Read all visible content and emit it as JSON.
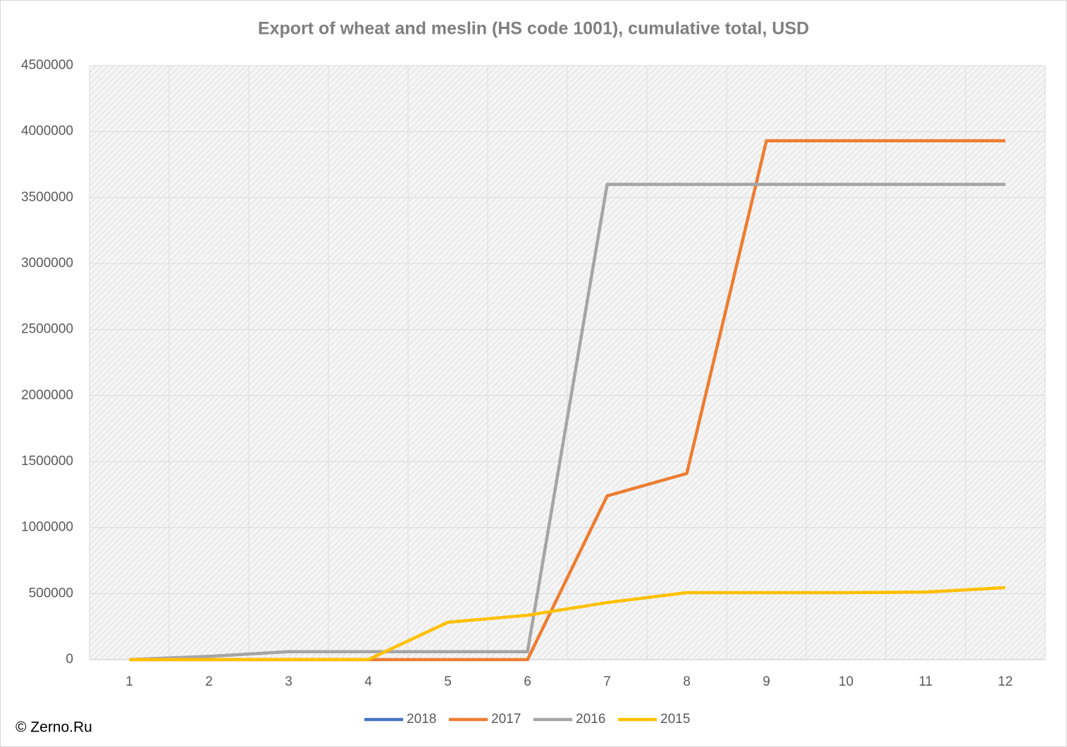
{
  "chart_data": {
    "type": "line",
    "title": "Export of wheat and meslin (HS code 1001), cumulative total, USD",
    "categories": [
      "1",
      "2",
      "3",
      "4",
      "5",
      "6",
      "7",
      "8",
      "9",
      "10",
      "11",
      "12"
    ],
    "series": [
      {
        "name": "2018",
        "color": "#4472c4",
        "values": [
          0,
          null,
          null,
          null,
          null,
          null,
          null,
          null,
          null,
          null,
          null,
          null
        ]
      },
      {
        "name": "2017",
        "color": "#ed7d31",
        "values": [
          0,
          0,
          0,
          0,
          0,
          0,
          1240000,
          1410000,
          3930000,
          3930000,
          3930000,
          3930000
        ]
      },
      {
        "name": "2016",
        "color": "#a5a5a5",
        "values": [
          0,
          25000,
          60000,
          60000,
          60000,
          60000,
          3600000,
          3600000,
          3600000,
          3600000,
          3600000,
          3600000
        ]
      },
      {
        "name": "2015",
        "color": "#ffc000",
        "values": [
          0,
          0,
          0,
          0,
          283000,
          336000,
          432000,
          507000,
          507000,
          507000,
          512000,
          545000
        ]
      }
    ],
    "ylim": [
      0,
      4500000
    ],
    "yticks": [
      0,
      500000,
      1000000,
      1500000,
      2000000,
      2500000,
      3000000,
      3500000,
      4000000,
      4500000
    ],
    "grid": true,
    "legend": "bottom",
    "source": "© Zerno.Ru"
  }
}
